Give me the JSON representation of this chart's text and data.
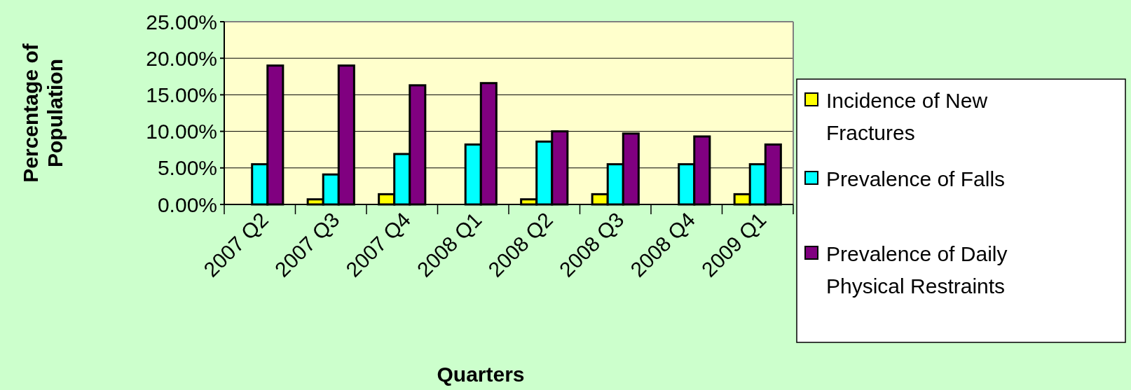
{
  "chart_data": {
    "type": "bar",
    "xlabel": "Quarters",
    "ylabel": "Percentage of Population",
    "categories": [
      "2007 Q2",
      "2007 Q3",
      "2007 Q4",
      "2008 Q1",
      "2008 Q2",
      "2008 Q3",
      "2008 Q4",
      "2009 Q1"
    ],
    "series": [
      {
        "name": "Incidence of New Fractures",
        "color": "#ffff00",
        "values": [
          0,
          0.7,
          1.4,
          0,
          0.7,
          1.4,
          0,
          1.4
        ]
      },
      {
        "name": "Prevalence of Falls",
        "color": "#00ffff",
        "values": [
          5.5,
          4.1,
          6.9,
          8.2,
          8.6,
          5.5,
          5.5,
          5.5
        ]
      },
      {
        "name": "Prevalence of Daily Physical Restraints",
        "color": "#800080",
        "values": [
          19,
          19,
          16.3,
          16.6,
          10,
          9.7,
          9.3,
          8.2
        ]
      }
    ],
    "ylim": [
      0,
      25
    ],
    "yticks": [
      {
        "value": 0,
        "label": "0.00%"
      },
      {
        "value": 5,
        "label": "5.00%"
      },
      {
        "value": 10,
        "label": "10.00%"
      },
      {
        "value": 15,
        "label": "15.00%"
      },
      {
        "value": 20,
        "label": "20.00%"
      },
      {
        "value": 25,
        "label": "25.00%"
      }
    ],
    "grid": "y",
    "legend": "right"
  }
}
